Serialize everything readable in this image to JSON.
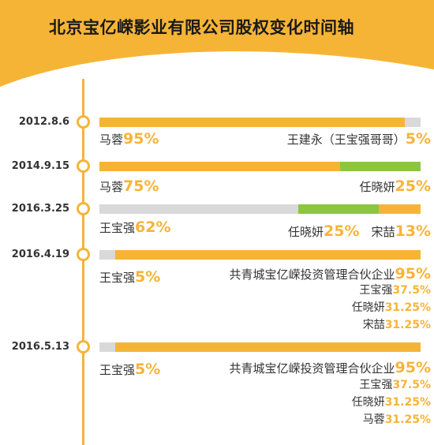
{
  "title": "北京宝亿嵘影业有限公司股权变化时间轴",
  "colors": {
    "orange": "#f6b437",
    "green": "#8cc63f",
    "gray": "#d9d9d9"
  },
  "entries": [
    {
      "date": "2012.8.6",
      "segments": [
        {
          "share": 95,
          "color": "orange"
        },
        {
          "share": 5,
          "color": "gray"
        }
      ],
      "holders": [
        {
          "name": "马蓉",
          "pct": "95%"
        },
        {
          "name": "王建永（王宝强哥哥）",
          "pct": "5%"
        }
      ]
    },
    {
      "date": "2014.9.15",
      "segments": [
        {
          "share": 75,
          "color": "orange"
        },
        {
          "share": 25,
          "color": "green"
        }
      ],
      "holders": [
        {
          "name": "马蓉",
          "pct": "75%"
        },
        {
          "name": "任晓妍",
          "pct": "25%"
        }
      ]
    },
    {
      "date": "2016.3.25",
      "segments": [
        {
          "share": 62,
          "color": "gray"
        },
        {
          "share": 25,
          "color": "green"
        },
        {
          "share": 13,
          "color": "orange"
        }
      ],
      "holders": [
        {
          "name": "王宝强",
          "pct": "62%"
        },
        {
          "name": "任晓妍",
          "pct": "25%"
        },
        {
          "name": "宋喆",
          "pct": "13%"
        }
      ]
    },
    {
      "date": "2016.4.19",
      "segments": [
        {
          "share": 5,
          "color": "gray"
        },
        {
          "share": 95,
          "color": "orange"
        }
      ],
      "holders": [
        {
          "name": "王宝强",
          "pct": "5%"
        },
        {
          "name": "共青城宝亿嵘投资管理合伙企业",
          "pct": "95%"
        }
      ],
      "partners": [
        {
          "name": "王宝强",
          "pct": "37.5%"
        },
        {
          "name": "任晓妍",
          "pct": "31.25%"
        },
        {
          "name": "宋喆",
          "pct": "31.25%"
        }
      ]
    },
    {
      "date": "2016.5.13",
      "segments": [
        {
          "share": 5,
          "color": "gray"
        },
        {
          "share": 95,
          "color": "orange"
        }
      ],
      "holders": [
        {
          "name": "王宝强",
          "pct": "5%"
        },
        {
          "name": "共青城宝亿嵘投资管理合伙企业",
          "pct": "95%"
        }
      ],
      "partners": [
        {
          "name": "王宝强",
          "pct": "37.5%"
        },
        {
          "name": "任晓妍",
          "pct": "31.25%"
        },
        {
          "name": "马蓉",
          "pct": "31.25%"
        }
      ]
    }
  ]
}
